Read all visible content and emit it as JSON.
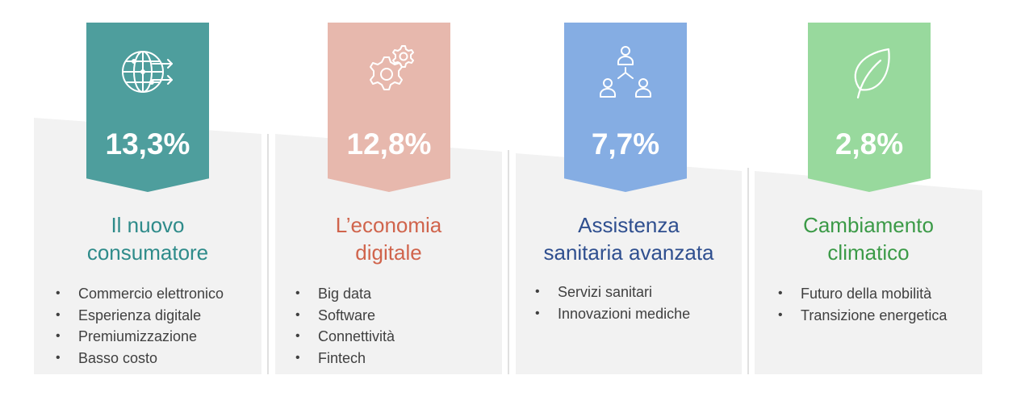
{
  "cards": [
    {
      "percent": "13,3%",
      "icon": "globe-arrows-icon",
      "title_lines": [
        "Il nuovo",
        "consumatore"
      ],
      "items": [
        "Commercio elettronico",
        "Esperienza digitale",
        "Premiumizzazione",
        "Basso costo"
      ],
      "banner_color": "#4e9e9d",
      "title_color": "#2e8b8a"
    },
    {
      "percent": "12,8%",
      "icon": "gears-icon",
      "title_lines": [
        "L’economia",
        "digitale"
      ],
      "items": [
        "Big data",
        "Software",
        "Connettività",
        "Fintech"
      ],
      "banner_color": "#e7b8ad",
      "title_color": "#d0644c"
    },
    {
      "percent": "7,7%",
      "icon": "people-network-icon",
      "title_lines": [
        "Assistenza",
        "sanitaria avanzata"
      ],
      "items": [
        "Servizi sanitari",
        "Innovazioni mediche"
      ],
      "banner_color": "#85ade3",
      "title_color": "#2f4f8f"
    },
    {
      "percent": "2,8%",
      "icon": "leaf-icon",
      "title_lines": [
        "Cambiamento",
        "climatico"
      ],
      "items": [
        "Futuro della mobilità",
        "Transizione energetica"
      ],
      "banner_color": "#98d99d",
      "title_color": "#3b9a47"
    }
  ]
}
